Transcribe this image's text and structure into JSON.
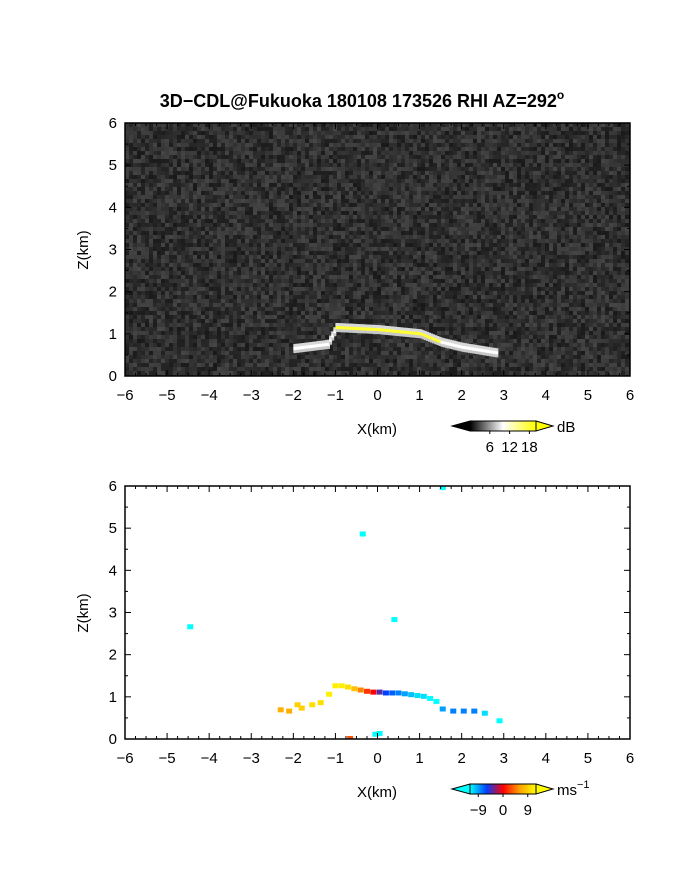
{
  "chart_data": [
    {
      "type": "heatmap",
      "title": "3D−CDL@Fukuoka 180108 173526 RHI AZ=292",
      "title_superscript": "o",
      "xlabel": "X(km)",
      "ylabel": "Z(km)",
      "xlim": [
        -6,
        6
      ],
      "ylim": [
        0,
        6
      ],
      "x_ticks": [
        "−6",
        "−5",
        "−4",
        "−3",
        "−2",
        "−1",
        "0",
        "1",
        "2",
        "3",
        "4",
        "5",
        "6"
      ],
      "y_ticks": [
        "0",
        "1",
        "2",
        "3",
        "4",
        "5",
        "6"
      ],
      "background": "noise",
      "colorbar": {
        "unit": "dB",
        "ticks": [
          "6",
          "12",
          "18"
        ],
        "tick_values": [
          6,
          12,
          18
        ],
        "range": [
          0,
          20
        ],
        "colors": [
          "#000000",
          "#ffffff",
          "#ffff00"
        ]
      },
      "echo_region": {
        "description": "layer",
        "profile": [
          [
            -2.0,
            0.65
          ],
          [
            -1.2,
            0.75
          ],
          [
            -1.0,
            1.15
          ],
          [
            0,
            1.1
          ],
          [
            1.0,
            1.0
          ],
          [
            1.5,
            0.8
          ],
          [
            2.0,
            0.68
          ],
          [
            2.8,
            0.55
          ]
        ],
        "core_value_dB": 18,
        "edge_value_dB": 10
      }
    },
    {
      "type": "heatmap",
      "xlabel": "X(km)",
      "ylabel": "Z(km)",
      "xlim": [
        -6,
        6
      ],
      "ylim": [
        0,
        6
      ],
      "x_ticks": [
        "−6",
        "−5",
        "−4",
        "−3",
        "−2",
        "−1",
        "0",
        "1",
        "2",
        "3",
        "4",
        "5",
        "6"
      ],
      "y_ticks": [
        "0",
        "1",
        "2",
        "3",
        "4",
        "5",
        "6"
      ],
      "colorbar": {
        "unit": "ms",
        "unit_superscript": "−1",
        "ticks": [
          "−9",
          "0",
          "9"
        ],
        "tick_values": [
          -9,
          0,
          9
        ],
        "range": [
          -12,
          12
        ],
        "colors": [
          "#00ffff",
          "#0040ff",
          "#ff0000",
          "#ffa000",
          "#ffff00"
        ]
      },
      "points": [
        {
          "x": -4.45,
          "z": 2.65,
          "v": -12
        },
        {
          "x": -0.35,
          "z": 4.85,
          "v": -12
        },
        {
          "x": 0.4,
          "z": 2.82,
          "v": -12
        },
        {
          "x": 1.55,
          "z": 5.95,
          "v": -12
        },
        {
          "x": -2.3,
          "z": 0.68,
          "v": 7
        },
        {
          "x": -2.1,
          "z": 0.65,
          "v": 7
        },
        {
          "x": -1.9,
          "z": 0.8,
          "v": 9
        },
        {
          "x": -1.8,
          "z": 0.72,
          "v": 9
        },
        {
          "x": -1.55,
          "z": 0.8,
          "v": 10
        },
        {
          "x": -1.35,
          "z": 0.85,
          "v": 10
        },
        {
          "x": -1.15,
          "z": 1.05,
          "v": 11
        },
        {
          "x": -1.0,
          "z": 1.25,
          "v": 11
        },
        {
          "x": -0.85,
          "z": 1.25,
          "v": 11
        },
        {
          "x": -0.7,
          "z": 1.22,
          "v": 10
        },
        {
          "x": -0.55,
          "z": 1.18,
          "v": 8
        },
        {
          "x": -0.4,
          "z": 1.15,
          "v": 5
        },
        {
          "x": -0.25,
          "z": 1.12,
          "v": 2
        },
        {
          "x": -0.1,
          "z": 1.1,
          "v": 0
        },
        {
          "x": 0.05,
          "z": 1.1,
          "v": -4
        },
        {
          "x": 0.2,
          "z": 1.08,
          "v": -6
        },
        {
          "x": 0.35,
          "z": 1.08,
          "v": -7
        },
        {
          "x": 0.5,
          "z": 1.08,
          "v": -8
        },
        {
          "x": 0.65,
          "z": 1.06,
          "v": -9
        },
        {
          "x": 0.8,
          "z": 1.04,
          "v": -10
        },
        {
          "x": 0.95,
          "z": 1.02,
          "v": -11
        },
        {
          "x": 1.1,
          "z": 1.0,
          "v": -11
        },
        {
          "x": 1.25,
          "z": 0.95,
          "v": -12
        },
        {
          "x": 1.4,
          "z": 0.88,
          "v": -12
        },
        {
          "x": 1.55,
          "z": 0.7,
          "v": -9
        },
        {
          "x": 1.8,
          "z": 0.65,
          "v": -8
        },
        {
          "x": 2.05,
          "z": 0.65,
          "v": -8
        },
        {
          "x": 2.3,
          "z": 0.65,
          "v": -8
        },
        {
          "x": 2.55,
          "z": 0.6,
          "v": -11
        },
        {
          "x": 2.9,
          "z": 0.42,
          "v": -12
        },
        {
          "x": -0.05,
          "z": 0.1,
          "v": -12
        },
        {
          "x": 0.05,
          "z": 0.12,
          "v": -12
        },
        {
          "x": -0.65,
          "z": 0.0,
          "v": 3
        }
      ]
    }
  ]
}
